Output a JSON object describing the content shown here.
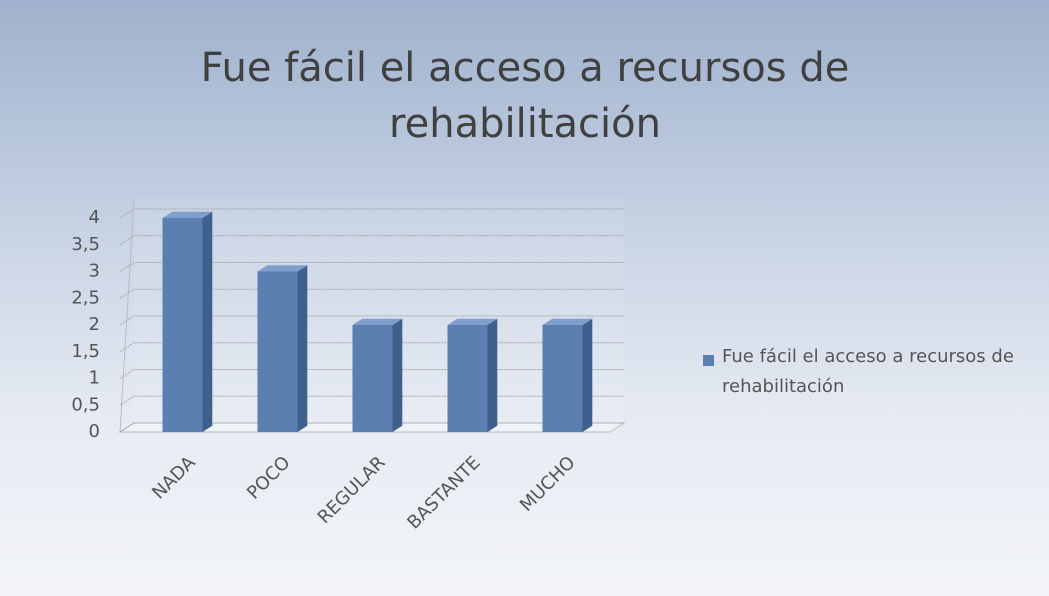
{
  "chart_data": {
    "type": "bar",
    "title": "Fue fácil el acceso a recursos de rehabilitación",
    "categories": [
      "NADA",
      "POCO",
      "REGULAR",
      "BASTANTE",
      "MUCHO"
    ],
    "series": [
      {
        "name": "Fue fácil el acceso a recursos de rehabilitación",
        "color": "#5b7fb0",
        "values": [
          4,
          3,
          2,
          2,
          2
        ]
      }
    ],
    "ylim": [
      0,
      4
    ],
    "yticks": [
      0,
      {
        "value": 0.5,
        "label": "0,5"
      },
      1,
      {
        "value": 1.5,
        "label": "1,5"
      },
      2,
      {
        "value": 2.5,
        "label": "2,5"
      },
      3,
      {
        "value": 3.5,
        "label": "3,5"
      },
      4
    ],
    "grid": true,
    "legend": "right"
  }
}
